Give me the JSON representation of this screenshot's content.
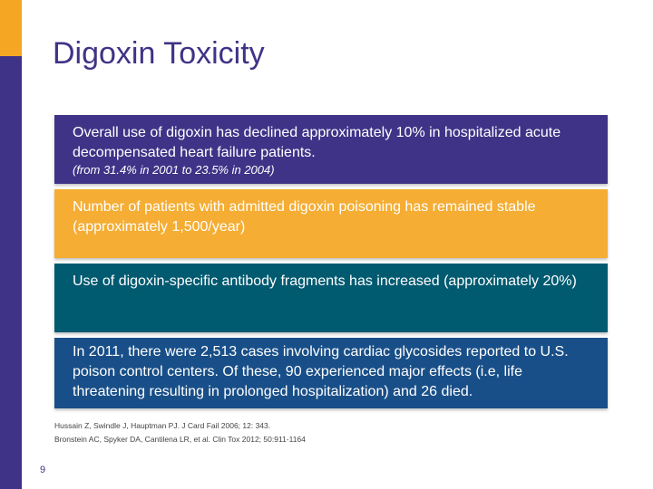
{
  "title": "Digoxin Toxicity",
  "boxes": [
    {
      "text": "Overall use of digoxin has declined approximately 10% in hospitalized acute decompensated heart failure patients.",
      "subtext": "(from 31.4% in 2001 to 23.5% in  2004)",
      "color": "#3f3387"
    },
    {
      "text": "Number of patients with admitted digoxin poisoning has remained stable (approximately 1,500/year)",
      "color": "#f5ad33"
    },
    {
      "text": "Use of digoxin-specific antibody fragments has increased (approximately 20%)",
      "color": "#005a70"
    },
    {
      "text": "In 2011, there were 2,513 cases involving cardiac glycosides reported to U.S. poison control centers. Of these, 90 experienced major effects (i.e, life threatening resulting in prolonged hospitalization) and 26 died.",
      "color": "#194f88"
    }
  ],
  "references": [
    "Hussain Z, Swindle J, Hauptman PJ.  J Card Fail 2006; 12: 343.",
    "Bronstein AC, Spyker DA, Cantilena LR, et al. Clin Tox 2012; 50:911-1164"
  ],
  "page_number": "9",
  "colors": {
    "brand_purple": "#3f3387",
    "accent_orange": "#f5a623"
  }
}
